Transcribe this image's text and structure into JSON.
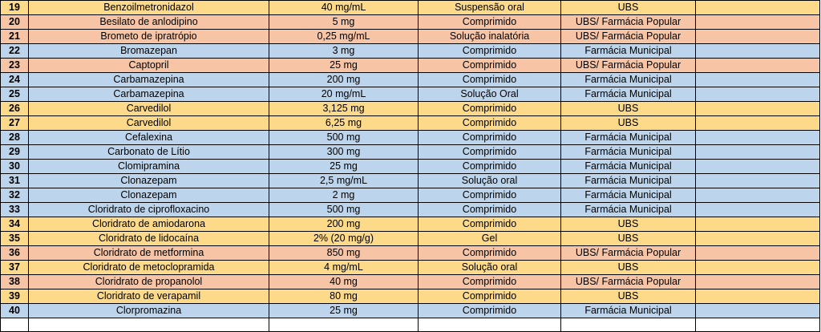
{
  "rows": [
    {
      "n": "19",
      "name": "Benzoilmetronidazol",
      "dose": "40 mg/mL",
      "form": "Suspensão oral",
      "place": "UBS",
      "color": "yellow"
    },
    {
      "n": "20",
      "name": "Besilato de anlodipino",
      "dose": "5 mg",
      "form": "Comprimido",
      "place": "UBS/ Farmácia Popular",
      "color": "salmon"
    },
    {
      "n": "21",
      "name": "Brometo de ipratrópio",
      "dose": "0,25 mg/mL",
      "form": "Solução inalatória",
      "place": "UBS/ Farmácia Popular",
      "color": "salmon"
    },
    {
      "n": "22",
      "name": "Bromazepan",
      "dose": "3 mg",
      "form": "Comprimido",
      "place": "Farmácia Municipal",
      "color": "blue"
    },
    {
      "n": "23",
      "name": "Captopril",
      "dose": "25 mg",
      "form": "Comprimido",
      "place": "UBS/ Farmácia Popular",
      "color": "salmon"
    },
    {
      "n": "24",
      "name": "Carbamazepina",
      "dose": "200 mg",
      "form": "Comprimido",
      "place": "Farmácia Municipal",
      "color": "blue"
    },
    {
      "n": "25",
      "name": "Carbamazepina",
      "dose": "20 mg/mL",
      "form": "Solução Oral",
      "place": "Farmácia Municipal",
      "color": "blue"
    },
    {
      "n": "26",
      "name": "Carvedilol",
      "dose": "3,125 mg",
      "form": "Comprimido",
      "place": "UBS",
      "color": "yellow"
    },
    {
      "n": "27",
      "name": "Carvedilol",
      "dose": "6,25 mg",
      "form": "Comprimido",
      "place": "UBS",
      "color": "yellow"
    },
    {
      "n": "28",
      "name": "Cefalexina",
      "dose": "500 mg",
      "form": "Comprimido",
      "place": "Farmácia Municipal",
      "color": "blue"
    },
    {
      "n": "29",
      "name": "Carbonato de Lítio",
      "dose": "300 mg",
      "form": "Comprimido",
      "place": "Farmácia Municipal",
      "color": "blue"
    },
    {
      "n": "30",
      "name": "Clomipramina",
      "dose": "25 mg",
      "form": "Comprimido",
      "place": "Farmácia Municipal",
      "color": "blue"
    },
    {
      "n": "31",
      "name": "Clonazepam",
      "dose": "2,5 mg/mL",
      "form": "Solução oral",
      "place": "Farmácia Municipal",
      "color": "blue"
    },
    {
      "n": "32",
      "name": "Clonazepam",
      "dose": "2 mg",
      "form": "Comprimido",
      "place": "Farmácia Municipal",
      "color": "blue"
    },
    {
      "n": "33",
      "name": "Cloridrato de ciprofloxacino",
      "dose": "500 mg",
      "form": "Comprimido",
      "place": "Farmácia Municipal",
      "color": "blue"
    },
    {
      "n": "34",
      "name": "Cloridrato de amiodarona",
      "dose": "200 mg",
      "form": "Comprimido",
      "place": "UBS",
      "color": "yellow"
    },
    {
      "n": "35",
      "name": "Cloridrato de lidocaína",
      "dose": "2% (20 mg/g)",
      "form": "Gel",
      "place": "UBS",
      "color": "yellow"
    },
    {
      "n": "36",
      "name": "Cloridrato de metformina",
      "dose": "850 mg",
      "form": "Comprimido",
      "place": "UBS/ Farmácia Popular",
      "color": "salmon"
    },
    {
      "n": "37",
      "name": "Cloridrato de metoclopramida",
      "dose": "4 mg/mL",
      "form": "Solução oral",
      "place": "UBS",
      "color": "yellow"
    },
    {
      "n": "38",
      "name": "Cloridrato de propanolol",
      "dose": "40 mg",
      "form": "Comprimido",
      "place": "UBS/ Farmácia Popular",
      "color": "salmon"
    },
    {
      "n": "39",
      "name": "Cloridrato de verapamil",
      "dose": "80 mg",
      "form": "Comprimido",
      "place": "UBS",
      "color": "yellow"
    },
    {
      "n": "40",
      "name": "Clorpromazina",
      "dose": "25 mg",
      "form": "Comprimido",
      "place": "Farmácia Municipal",
      "color": "blue"
    }
  ],
  "colors": {
    "yellow": "#fdd98a",
    "salmon": "#f8c4a6",
    "blue": "#bdd5ec"
  }
}
